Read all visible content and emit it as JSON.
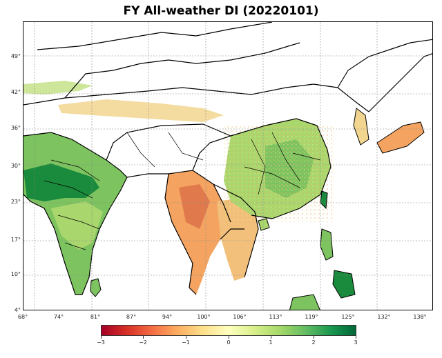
{
  "title": "FY All-weather DI (20220101)",
  "map": {
    "lon_ticks": [
      "68°",
      "74°",
      "81°",
      "87°",
      "94°",
      "100°",
      "106°",
      "113°",
      "119°",
      "125°",
      "132°",
      "138°"
    ],
    "lat_ticks": [
      "49°",
      "42°",
      "36°",
      "30°",
      "23°",
      "17°",
      "10°",
      "4°"
    ],
    "grid": true,
    "colors": {
      "ocean": "#ffffff",
      "high": "#1a8a3c",
      "mid_high": "#7dc35f",
      "neutral": "#e6f0a0",
      "low": "#f4a460",
      "very_low": "#d7301f",
      "border": "#000000",
      "gridline": "#888888"
    }
  },
  "colorbar": {
    "ticks": [
      "−3",
      "−2",
      "−1",
      "0",
      "1",
      "2",
      "3"
    ],
    "min": -3,
    "max": 3,
    "colormap": "RdYlGn"
  }
}
